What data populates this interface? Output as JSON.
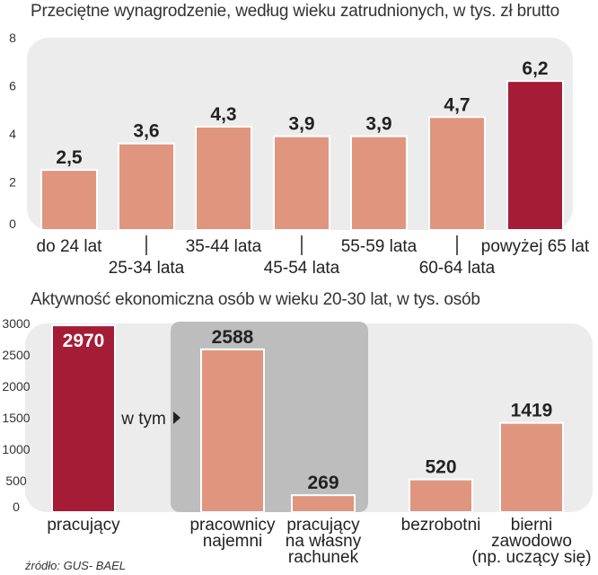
{
  "source": "źródło: GUS- BAEL",
  "chart_data": [
    {
      "type": "bar",
      "title": "Przeciętne wynagrodzenie, według wieku zatrudnionych, w tys. zł brutto",
      "categories": [
        "do 24 lat",
        "25-34 lata",
        "35-44 lata",
        "45-54 lata",
        "55-59 lata",
        "60-64 lata",
        "powyżej 65 lat"
      ],
      "values": [
        2.5,
        3.6,
        4.3,
        3.9,
        3.9,
        4.7,
        6.2
      ],
      "value_labels": [
        "2,5",
        "3,6",
        "4,3",
        "3,9",
        "3,9",
        "4,7",
        "6,2"
      ],
      "highlight_index": 6,
      "yticks": [
        "0",
        "2",
        "4",
        "6",
        "8"
      ],
      "ylim": [
        0,
        8
      ],
      "colors": {
        "bar": "#e0957f",
        "highlight": "#a51c36",
        "panel": "#ececec"
      }
    },
    {
      "type": "bar",
      "title": "Aktywność ekonomiczna osób w wieku 20-30 lat, w tys. osób",
      "categories": [
        "pracujący",
        "pracownicy najemni",
        "pracujący na własny rachunek",
        "bezrobotni",
        "bierni zawodowo (np. uczący się)"
      ],
      "category_lines": [
        [
          "pracujący"
        ],
        [
          "pracownicy",
          "najemni"
        ],
        [
          "pracujący",
          "na własny",
          "rachunek"
        ],
        [
          "bezrobotni"
        ],
        [
          "bierni",
          "zawodowo",
          "(np. uczący się)"
        ]
      ],
      "values": [
        2970,
        2588,
        269,
        520,
        1419
      ],
      "value_labels": [
        "2970",
        "2588",
        "269",
        "520",
        "1419"
      ],
      "highlight_index": 0,
      "group_label": "w tym",
      "yticks": [
        "0",
        "500",
        "1000",
        "1500",
        "2000",
        "2500",
        "3000"
      ],
      "ylim": [
        0,
        3000
      ],
      "colors": {
        "bar": "#e0957f",
        "highlight": "#a51c36",
        "panel": "#ececec",
        "group_panel": "#bdbdbd"
      }
    }
  ]
}
